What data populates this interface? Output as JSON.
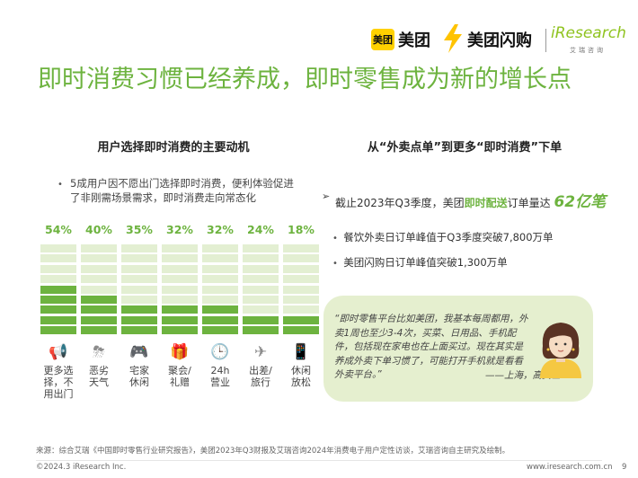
{
  "header": {
    "logo_meituan_box": "美团",
    "logo_meituan": "美团",
    "logo_meituan_shangou": "美团闪购",
    "logo_iresearch": "iResearch",
    "logo_iresearch_sub": "艾瑞咨询"
  },
  "title": "即时消费习惯已经养成，即时零售成为新的增长点",
  "left_panel": {
    "heading": "用户选择即时消费的主要动机",
    "bullet": "5成用户因不愿出门选择即时消费，便利体验促进了非刚需场景需求，即时消费走向常态化"
  },
  "chart_data": {
    "type": "bar",
    "categories": [
      "更多选择，不用出门",
      "恶劣天气",
      "宅家休闲",
      "聚会/礼赠",
      "24h营业",
      "出差/旅行",
      "休闲放松"
    ],
    "category_lines": [
      [
        "更多选",
        "择，不",
        "用出门"
      ],
      [
        "恶劣",
        "天气"
      ],
      [
        "宅家",
        "休闲"
      ],
      [
        "聚会/",
        "礼赠"
      ],
      [
        "24h",
        "营业"
      ],
      [
        "出差/",
        "旅行"
      ],
      [
        "休闲",
        "放松"
      ]
    ],
    "values": [
      54,
      40,
      35,
      32,
      32,
      24,
      18
    ],
    "value_labels": [
      "54%",
      "40%",
      "35%",
      "32%",
      "32%",
      "24%",
      "18%"
    ],
    "ylim": [
      0,
      100
    ],
    "icons": [
      "megaphone-icon",
      "storm-icon",
      "gamepad-icon",
      "gift-icon",
      "clock-24h-icon",
      "travel-icon",
      "phone-icon"
    ],
    "colors": {
      "filled": "#6db33f",
      "empty": "#e3efd2"
    }
  },
  "right_panel": {
    "heading": "从“外卖点单”到更多“即时消费”下单",
    "highlight_prefix": "截止2023年Q3季度，美团",
    "highlight_strong": "即时配送",
    "highlight_mid": "订单量达 ",
    "highlight_number": "62亿笔",
    "sub_bullets": [
      "餐饮外卖日订单峰值于Q3季度突破7,800万单",
      "美团闪购日订单峰值突破1,300万单"
    ],
    "quote": "“即时零售平台比如美团，我基本每周都用，外卖1周也至少3-4次，买菜、日用品、手机配件，包括现在家电也在上面买过。现在其实是养成外卖下单习惯了，可能打开手机就是看看外卖平台。”",
    "quote_attr": "——上海，高女士"
  },
  "footer": {
    "source": "来源：综合艾瑞《中国即时零售行业研究报告》，美团2023年Q3财报及艾瑞咨询2024年消费电子用户定性访谈，艾瑞咨询自主研究及绘制。",
    "copyright": "©2024.3 iResearch Inc.",
    "site": "www.iresearch.com.cn",
    "page": "9"
  },
  "colors": {
    "accent": "#6db33f",
    "light": "#e3efd2",
    "card": "#e5efcf"
  }
}
